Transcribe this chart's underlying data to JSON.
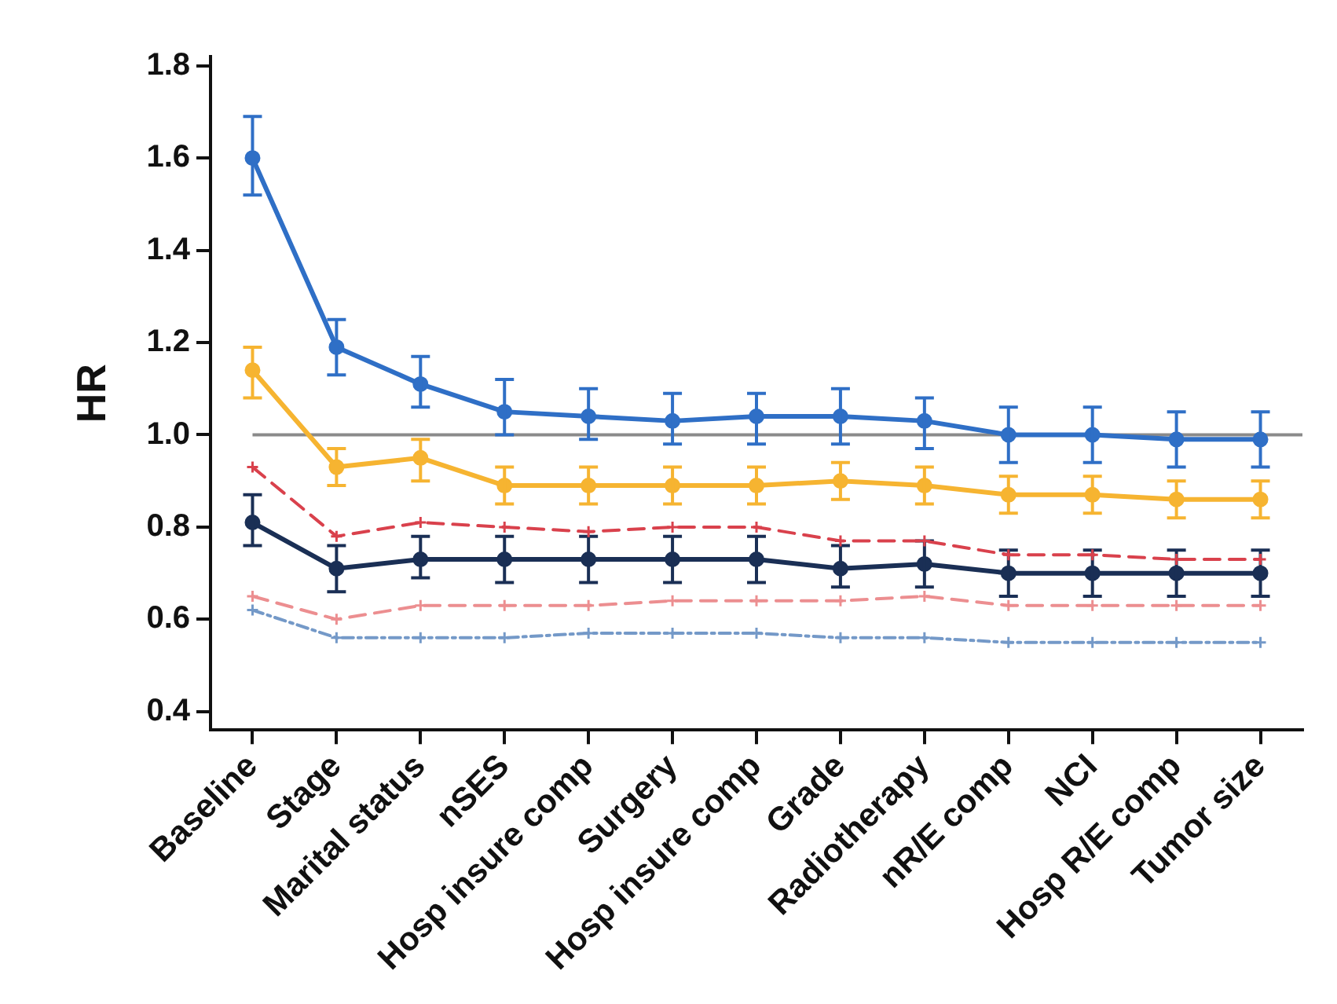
{
  "chart_data": {
    "type": "line",
    "ylabel": "HR",
    "categories": [
      "Baseline",
      "Stage",
      "Marital status",
      "nSES",
      "Hosp insure comp",
      "Surgery",
      "Hosp insure comp",
      "Grade",
      "Radiotherapy",
      "nR/E comp",
      "NCI",
      "Hosp R/E comp",
      "Tumor size"
    ],
    "series": [
      {
        "color": "#2f6fc6",
        "marker": "circle",
        "line_style": "solid",
        "values": [
          1.6,
          1.19,
          1.11,
          1.05,
          1.04,
          1.03,
          1.04,
          1.04,
          1.03,
          1.0,
          1.0,
          0.99,
          0.99
        ],
        "errors": [
          [
            1.52,
            1.69
          ],
          [
            1.13,
            1.25
          ],
          [
            1.06,
            1.17
          ],
          [
            1.0,
            1.12
          ],
          [
            0.99,
            1.1
          ],
          [
            0.98,
            1.09
          ],
          [
            0.98,
            1.09
          ],
          [
            0.98,
            1.1
          ],
          [
            0.97,
            1.08
          ],
          [
            0.94,
            1.06
          ],
          [
            0.94,
            1.06
          ],
          [
            0.93,
            1.05
          ],
          [
            0.93,
            1.05
          ]
        ]
      },
      {
        "color": "#f6b431",
        "marker": "circle",
        "line_style": "solid",
        "values": [
          1.14,
          0.93,
          0.95,
          0.89,
          0.89,
          0.89,
          0.89,
          0.9,
          0.89,
          0.87,
          0.87,
          0.86,
          0.86
        ],
        "errors": [
          [
            1.08,
            1.19
          ],
          [
            0.89,
            0.97
          ],
          [
            0.9,
            0.99
          ],
          [
            0.85,
            0.93
          ],
          [
            0.85,
            0.93
          ],
          [
            0.85,
            0.93
          ],
          [
            0.85,
            0.93
          ],
          [
            0.86,
            0.94
          ],
          [
            0.85,
            0.93
          ],
          [
            0.83,
            0.91
          ],
          [
            0.83,
            0.91
          ],
          [
            0.82,
            0.9
          ],
          [
            0.82,
            0.9
          ]
        ]
      },
      {
        "color": "#d9414c",
        "marker": "cross",
        "line_style": "dashed",
        "values": [
          0.93,
          0.78,
          0.81,
          0.8,
          0.79,
          0.8,
          0.8,
          0.77,
          0.77,
          0.74,
          0.74,
          0.73,
          0.73
        ]
      },
      {
        "color": "#1a2f55",
        "marker": "circle",
        "line_style": "solid",
        "values": [
          0.81,
          0.71,
          0.73,
          0.73,
          0.73,
          0.73,
          0.73,
          0.71,
          0.72,
          0.7,
          0.7,
          0.7,
          0.7
        ],
        "errors": [
          [
            0.76,
            0.87
          ],
          [
            0.66,
            0.76
          ],
          [
            0.69,
            0.78
          ],
          [
            0.68,
            0.78
          ],
          [
            0.68,
            0.78
          ],
          [
            0.68,
            0.78
          ],
          [
            0.68,
            0.78
          ],
          [
            0.67,
            0.76
          ],
          [
            0.67,
            0.77
          ],
          [
            0.65,
            0.75
          ],
          [
            0.65,
            0.75
          ],
          [
            0.65,
            0.75
          ],
          [
            0.65,
            0.75
          ]
        ]
      },
      {
        "color": "#ec8e90",
        "marker": "cross",
        "line_style": "dashed",
        "values": [
          0.65,
          0.6,
          0.63,
          0.63,
          0.63,
          0.64,
          0.64,
          0.64,
          0.65,
          0.63,
          0.63,
          0.63,
          0.63
        ]
      },
      {
        "color": "#7499c8",
        "marker": "cross",
        "line_style": "dotted",
        "values": [
          0.62,
          0.56,
          0.56,
          0.56,
          0.57,
          0.57,
          0.57,
          0.56,
          0.56,
          0.55,
          0.55,
          0.55,
          0.55
        ]
      }
    ],
    "ylim": [
      0.36,
      1.82
    ],
    "yticks": [
      0.4,
      0.6,
      0.8,
      {
        "value": 1,
        "label": "1.0"
      },
      1.2,
      1.4,
      1.6,
      1.8
    ],
    "ref_lines": [
      {
        "axis": "y",
        "value": 1,
        "color": "#8a8a8a"
      }
    ],
    "grid": false,
    "legend": false
  }
}
